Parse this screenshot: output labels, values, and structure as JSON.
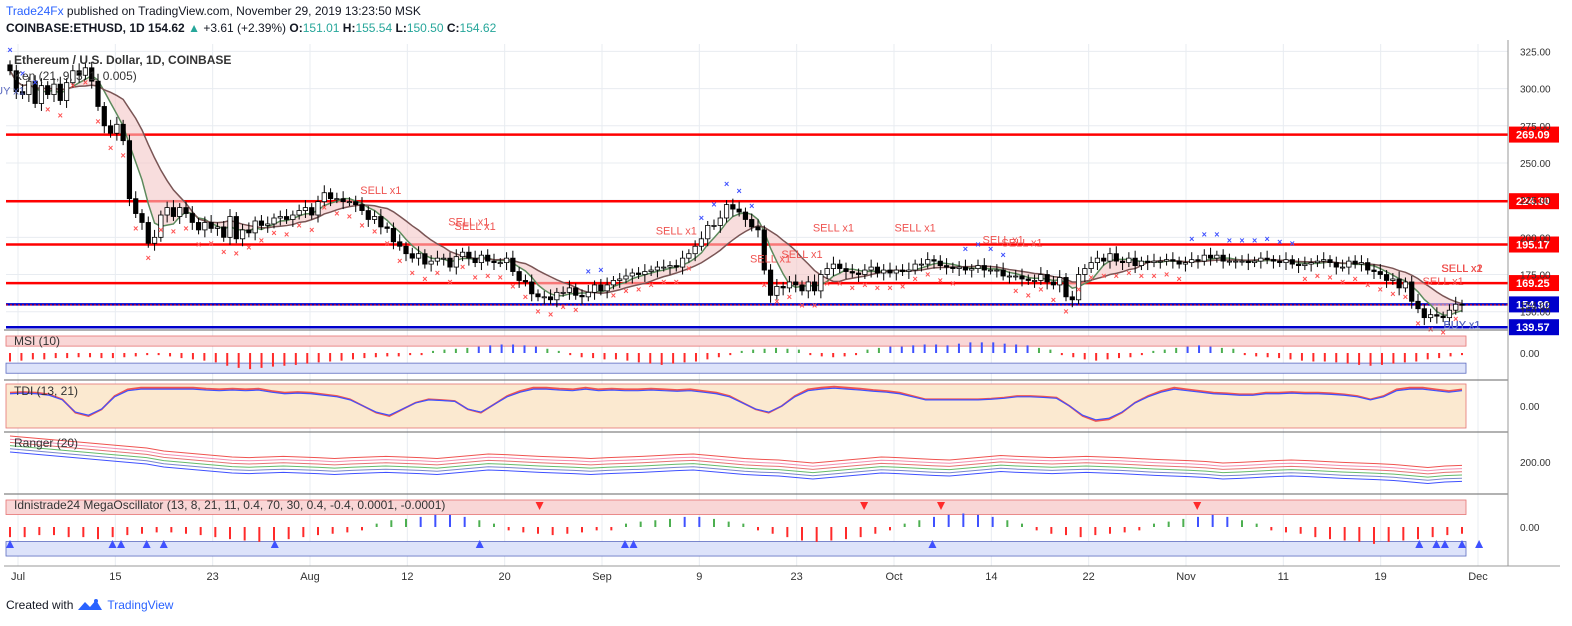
{
  "header": {
    "brand": "Trade24Fx",
    "published": " published on TradingView.com, November 29, 2019 13:23:50 MSK",
    "symbol": "COINBASE:ETHUSD, 1D",
    "last": "154.62",
    "change": "+3.61 (+2.39%)",
    "o_label": "O:",
    "o": "151.01",
    "h_label": "H:",
    "h": "155.54",
    "l_label": "L:",
    "l": "150.50",
    "c_label": "C:",
    "c": "154.62"
  },
  "footer": {
    "created": "Created with",
    "brand": "TradingView"
  },
  "colors": {
    "up": "#26a69a",
    "down": "#ef5350",
    "grid": "#e8ecf1",
    "red_level": "#ff0000",
    "blue_level": "#0000cc",
    "sell_marker": "#ff5252",
    "buy_marker": "#3f51ff"
  },
  "chart_data": [
    {
      "type": "candlestick",
      "title": "Ethereum / U.S. Dollar, 1D, COINBASE",
      "indicator": "Ken (21, 9, 3, 1, 0.005)",
      "ylim": [
        135,
        330
      ],
      "y_ticks": [
        "325.00",
        "300.00",
        "275.00",
        "250.00",
        "225.00",
        "200.00",
        "175.00",
        "150.00"
      ],
      "x_ticks": [
        "Jul",
        "15",
        "23",
        "Aug",
        "12",
        "20",
        "Sep",
        "9",
        "23",
        "Oct",
        "14",
        "22",
        "Nov",
        "11",
        "19",
        "Dec"
      ],
      "levels": [
        {
          "label": "269.09",
          "value": 269.09,
          "color": "red"
        },
        {
          "label": "224.30",
          "value": 224.3,
          "color": "red"
        },
        {
          "label": "195.17",
          "value": 195.17,
          "color": "red"
        },
        {
          "label": "169.25",
          "value": 169.25,
          "color": "red"
        },
        {
          "label": "154.90",
          "value": 154.9,
          "color": "blue"
        },
        {
          "label": "139.57",
          "value": 139.57,
          "color": "blue"
        }
      ],
      "last_price": {
        "label": "154.62",
        "value": 154.62
      },
      "signals": [
        {
          "text": "UY x1",
          "type": "buy",
          "day": 0
        },
        {
          "text": "SELL x1",
          "type": "sell",
          "day": 59
        },
        {
          "text": "SELL x1",
          "type": "sell",
          "day": 74
        },
        {
          "text": "SELL x1",
          "type": "sell",
          "day": 73
        },
        {
          "text": "SELL x1",
          "type": "sell",
          "day": 106
        },
        {
          "text": "SELL x1",
          "type": "sell",
          "day": 121
        },
        {
          "text": "SELL x1",
          "type": "sell",
          "day": 126
        },
        {
          "text": "SELL x1",
          "type": "sell",
          "day": 131
        },
        {
          "text": "SELL x1",
          "type": "sell",
          "day": 144
        },
        {
          "text": "SELL x1",
          "type": "sell",
          "day": 158
        },
        {
          "text": "SELL x1",
          "type": "sell",
          "day": 161
        },
        {
          "text": "SELL x1",
          "type": "sell",
          "day": 228
        },
        {
          "text": "SELL x1",
          "type": "sell",
          "day": 236
        },
        {
          "text": "SELL x1",
          "type": "sell",
          "day": 244
        },
        {
          "text": "SELL x2",
          "type": "sell",
          "day": 252
        },
        {
          "text": "SELL x2",
          "type": "sell",
          "day": 269
        },
        {
          "text": "BUY x1",
          "type": "buy",
          "day": 317
        },
        {
          "text": "BUY x1",
          "type": "buy",
          "day": 327
        },
        {
          "text": "BUY x1",
          "type": "buy",
          "day": 332
        },
        {
          "text": "BUY x1",
          "type": "buy",
          "day": 338
        },
        {
          "text": "SELL x1",
          "type": "sell",
          "day": 376
        }
      ]
    },
    {
      "type": "histogram",
      "title": "MSI (10)",
      "y_ticks": [
        "0.00"
      ]
    },
    {
      "type": "line",
      "title": "TDI (13, 21)",
      "y_ticks": [
        "0.00"
      ]
    },
    {
      "type": "line",
      "title": "Ranger (20)",
      "y_ticks": [
        "200.00"
      ]
    },
    {
      "type": "histogram",
      "title": "Idnistrade24 MegaOscillator (13, 8, 21, 11, 0.4, 70, 30, 0.4, -0.4, 0.0001, -0.0001)",
      "y_ticks": [
        "0.00"
      ]
    }
  ],
  "candles_close": [
    312,
    298,
    296,
    305,
    290,
    302,
    296,
    303,
    292,
    304,
    312,
    309,
    314,
    305,
    288,
    275,
    270,
    276,
    265,
    226,
    216,
    210,
    196,
    200,
    215,
    220,
    214,
    220,
    216,
    210,
    205,
    210,
    206,
    207,
    200,
    214,
    199,
    205,
    203,
    211,
    208,
    209,
    213,
    214,
    212,
    215,
    218,
    220,
    215,
    224,
    230,
    226,
    226,
    224,
    224,
    222,
    218,
    212,
    214,
    207,
    206,
    197,
    194,
    189,
    186,
    189,
    182,
    184,
    186,
    186,
    180,
    187,
    190,
    186,
    183,
    188,
    184,
    183,
    183,
    186,
    177,
    171,
    170,
    162,
    160,
    160,
    158,
    163,
    163,
    166,
    161,
    160,
    163,
    168,
    164,
    168,
    171,
    172,
    174,
    176,
    175,
    177,
    178,
    180,
    180,
    181,
    180,
    186,
    189,
    194,
    199,
    208,
    208,
    213,
    222,
    219,
    217,
    212,
    207,
    205,
    178,
    161,
    167,
    166,
    170,
    168,
    164,
    170,
    164,
    175,
    179,
    182,
    179,
    177,
    176,
    175,
    178,
    180,
    176,
    178,
    176,
    178,
    177,
    178,
    182,
    182,
    185,
    184,
    181,
    180,
    179,
    180,
    178,
    179,
    181,
    178,
    178,
    178,
    174,
    174,
    174,
    172,
    171,
    171,
    175,
    170,
    168,
    173,
    160,
    158,
    175,
    179,
    183,
    186,
    184,
    189,
    184,
    183,
    186,
    181,
    184,
    183,
    184,
    184,
    185,
    184,
    182,
    183,
    185,
    184,
    188,
    186,
    188,
    184,
    184,
    184,
    184,
    183,
    184,
    186,
    185,
    184,
    183,
    185,
    182,
    181,
    182,
    183,
    184,
    185,
    183,
    180,
    180,
    184,
    182,
    183,
    178,
    177,
    175,
    171,
    172,
    166,
    170,
    157,
    152,
    146,
    148,
    147,
    146,
    151,
    155,
    154.62
  ],
  "oscillators": {
    "msi": [
      -20,
      -18,
      -15,
      -15,
      -12,
      -12,
      -10,
      -10,
      -12,
      -12,
      -10,
      -8,
      -5,
      -5,
      -8,
      -12,
      -15,
      -18,
      -22,
      -30,
      -35,
      -38,
      -35,
      -32,
      -30,
      -28,
      -25,
      -22,
      -20,
      -18,
      -15,
      -12,
      -10,
      -8,
      -8,
      -5,
      -5,
      5,
      8,
      10,
      12,
      15,
      18,
      20,
      20,
      18,
      15,
      10,
      5,
      -5,
      -10,
      -12,
      -15,
      -15,
      -18,
      -22,
      -25,
      -28,
      -25,
      -22,
      -20,
      -15,
      -10,
      -5,
      5,
      8,
      10,
      12,
      10,
      8,
      -5,
      -8,
      -10,
      -8,
      -5,
      8,
      12,
      15,
      15,
      18,
      20,
      20,
      18,
      22,
      25,
      25,
      25,
      22,
      20,
      18,
      12,
      8,
      -5,
      -10,
      -15,
      -18,
      -15,
      -12,
      -10,
      -5,
      5,
      8,
      12,
      15,
      18,
      15,
      12,
      10,
      -5,
      -8,
      -10,
      -12,
      -15,
      -18,
      -20,
      -20,
      -22,
      -25,
      -28,
      -30,
      -28,
      -25,
      -22,
      -20,
      -15,
      -12,
      -8,
      -5
    ],
    "tdi": [
      40,
      42,
      40,
      35,
      20,
      -20,
      -30,
      -10,
      30,
      50,
      55,
      55,
      55,
      55,
      55,
      52,
      50,
      52,
      50,
      52,
      45,
      40,
      42,
      40,
      35,
      30,
      20,
      0,
      -20,
      -30,
      -10,
      10,
      20,
      18,
      15,
      -10,
      -20,
      5,
      30,
      45,
      55,
      55,
      52,
      50,
      55,
      50,
      52,
      50,
      50,
      52,
      50,
      48,
      50,
      45,
      40,
      30,
      10,
      -10,
      -20,
      0,
      30,
      50,
      55,
      58,
      55,
      52,
      48,
      45,
      40,
      30,
      20,
      20,
      20,
      20,
      20,
      22,
      25,
      30,
      30,
      28,
      25,
      0,
      -30,
      -45,
      -40,
      -20,
      10,
      30,
      45,
      55,
      50,
      45,
      40,
      38,
      35,
      35,
      40,
      40,
      42,
      40,
      40,
      38,
      35,
      30,
      20,
      30,
      50,
      55,
      55,
      50,
      45,
      50
    ],
    "ranger": [
      60,
      55,
      50,
      45,
      40,
      35,
      30,
      25,
      20,
      10,
      5,
      0,
      -5,
      -10,
      -12,
      -10,
      -8,
      -10,
      -12,
      -15,
      -12,
      -10,
      -8,
      -10,
      -12,
      -15,
      -10,
      -5,
      0,
      -2,
      -5,
      -8,
      -10,
      -12,
      -15,
      -12,
      -10,
      -8,
      -5,
      -2,
      0,
      -5,
      -10,
      -15,
      -18,
      -20,
      -25,
      -30,
      -25,
      -20,
      -15,
      -10,
      -12,
      -15,
      -18,
      -20,
      -15,
      -10,
      -5,
      -8,
      -10,
      -12,
      -10,
      -8,
      -10,
      -12,
      -15,
      -18,
      -20,
      -22,
      -25,
      -30,
      -28,
      -25,
      -22,
      -20,
      -22,
      -25,
      -28,
      -30,
      -32,
      -35,
      -40,
      -45,
      -40,
      -38
    ],
    "mega": [
      -15,
      -15,
      -12,
      -12,
      -15,
      -15,
      -18,
      -15,
      -12,
      -10,
      -8,
      -8,
      -10,
      -12,
      -15,
      -18,
      -20,
      -22,
      -20,
      -18,
      -15,
      -12,
      -10,
      -8,
      -5,
      5,
      10,
      12,
      15,
      18,
      18,
      15,
      10,
      5,
      -5,
      -8,
      -10,
      -12,
      -10,
      -8,
      -5,
      -5,
      5,
      8,
      10,
      12,
      15,
      15,
      12,
      8,
      5,
      -5,
      -10,
      -15,
      -20,
      -22,
      -20,
      -18,
      -15,
      -10,
      -5,
      5,
      10,
      15,
      18,
      20,
      18,
      15,
      10,
      5,
      -5,
      -10,
      -12,
      -15,
      -12,
      -10,
      -8,
      -5,
      5,
      8,
      12,
      15,
      18,
      15,
      10,
      5,
      -5,
      -8,
      -10,
      -15,
      -18,
      -20,
      -22,
      -25,
      -22,
      -20,
      -18,
      -15,
      -12,
      -10
    ]
  }
}
